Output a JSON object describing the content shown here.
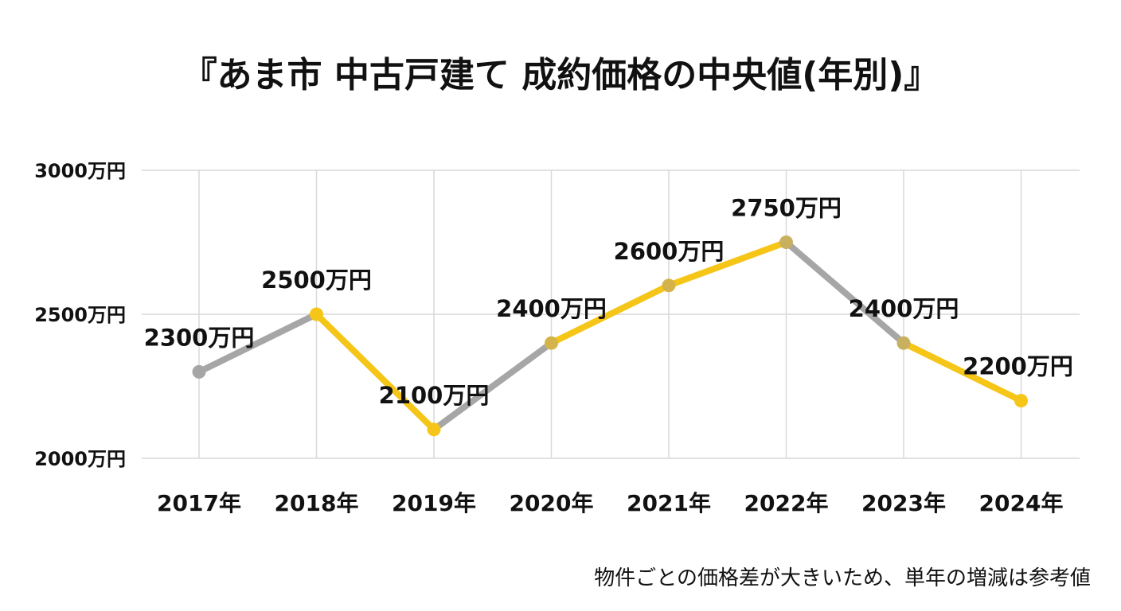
{
  "chart_data": {
    "type": "line",
    "title": "『あま市 中古戸建て 成約価格の中央値(年別)』",
    "note": "物件ごとの価格差が大きいため、単年の増減は参考値",
    "categories": [
      "2017年",
      "2018年",
      "2019年",
      "2020年",
      "2021年",
      "2022年",
      "2023年",
      "2024年"
    ],
    "values": [
      2300,
      2500,
      2100,
      2400,
      2600,
      2750,
      2400,
      2200
    ],
    "data_labels": [
      "2300万円",
      "2500万円",
      "2100万円",
      "2400万円",
      "2600万円",
      "2750万円",
      "2400万円",
      "2200万円"
    ],
    "segment_colors": [
      "#a6a6a6",
      "#f5c518",
      "#a6a6a6",
      "#f5c518",
      "#f5c518",
      "#a6a6a6",
      "#f5c518"
    ],
    "point_colors": [
      "#a6a6a6",
      "#f5c518",
      "#f5c518",
      "#d4b44a",
      "#d4b44a",
      "#c8b060",
      "#c8b060",
      "#f5c518"
    ],
    "ylim": [
      2000,
      3000
    ],
    "yticks": [
      2000,
      2500,
      3000
    ],
    "ytick_labels": [
      "2000万円",
      "2500万円",
      "3000万円"
    ],
    "xlabel": "",
    "ylabel": "",
    "grid": true,
    "legend": "none"
  }
}
